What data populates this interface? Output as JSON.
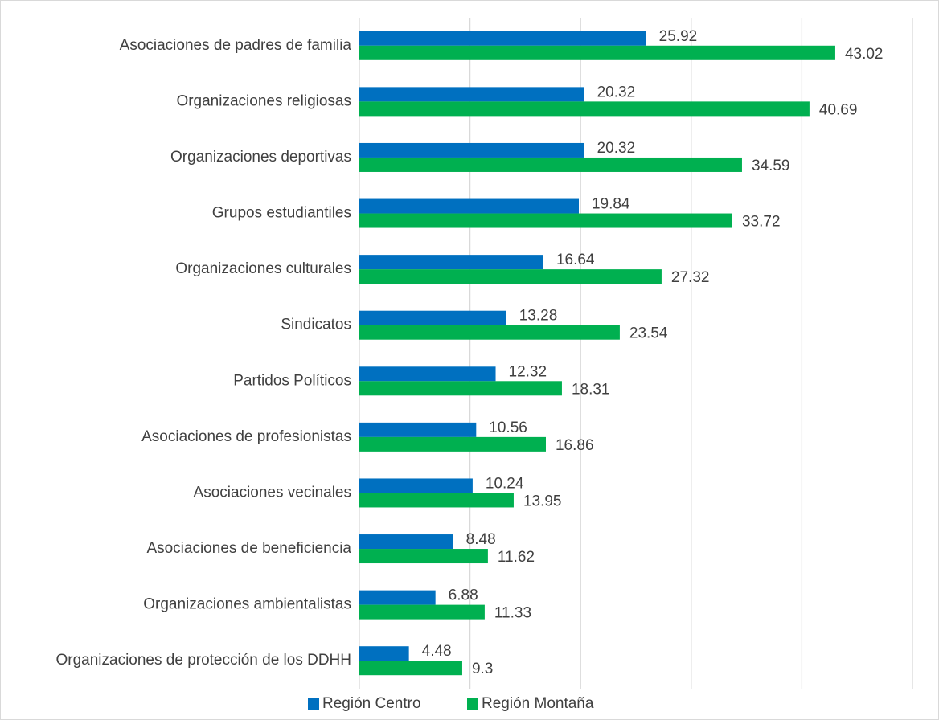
{
  "chart_data": {
    "type": "bar",
    "orientation": "horizontal",
    "categories": [
      "Asociaciones de padres de familia",
      "Organizaciones religiosas",
      "Organizaciones deportivas",
      "Grupos estudiantiles",
      "Organizaciones culturales",
      "Sindicatos",
      "Partidos Políticos",
      "Asociaciones de profesionistas",
      "Asociaciones vecinales",
      "Asociaciones de beneficiencia",
      "Organizaciones ambientalistas",
      "Organizaciones de protección de los DDHH"
    ],
    "series": [
      {
        "name": "Región Centro",
        "color": "#0070c0",
        "values": [
          25.92,
          20.32,
          20.32,
          19.84,
          16.64,
          13.28,
          12.32,
          10.56,
          10.24,
          8.48,
          6.88,
          4.48
        ]
      },
      {
        "name": "Región Montaña",
        "color": "#00b050",
        "values": [
          43.02,
          40.69,
          34.59,
          33.72,
          27.32,
          23.54,
          18.31,
          16.86,
          13.95,
          11.62,
          11.33,
          9.3
        ]
      }
    ],
    "xlim": [
      0,
      50
    ],
    "xticks": [
      0,
      10,
      20,
      30,
      40,
      50
    ],
    "grid": true,
    "legend": "bottom"
  }
}
